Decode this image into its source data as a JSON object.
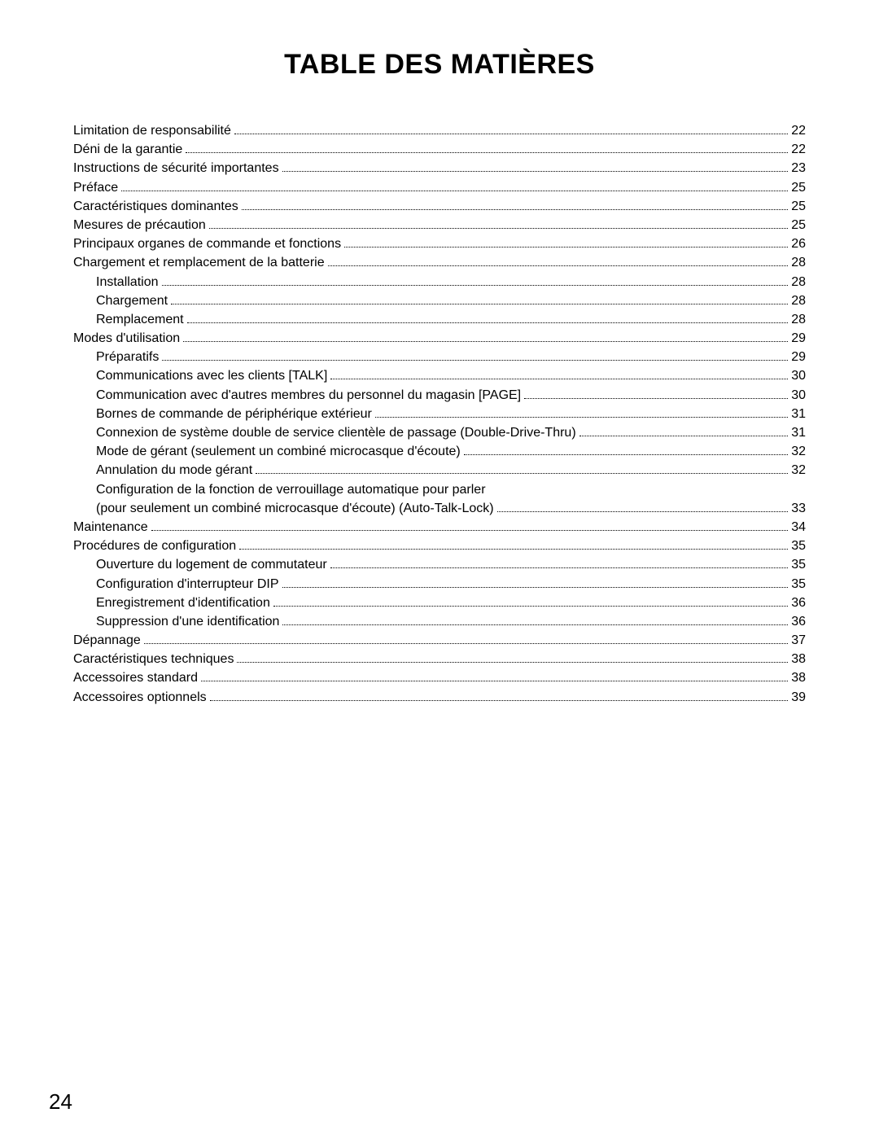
{
  "doc": {
    "title": "TABLE DES MATIÈRES",
    "page_number": "24",
    "colors": {
      "text": "#000000",
      "background": "#ffffff"
    },
    "typography": {
      "title_fontsize_pt": 26,
      "title_weight": "900",
      "body_fontsize_pt": 12,
      "pagenum_fontsize_pt": 20,
      "font_family": "Arial"
    },
    "toc": [
      {
        "label": "Limitation de responsabilité",
        "page": "22",
        "indent": 0
      },
      {
        "label": "Déni de la garantie",
        "page": "22",
        "indent": 0
      },
      {
        "label": "Instructions de sécurité importantes",
        "page": "23",
        "indent": 0
      },
      {
        "label": "Préface",
        "page": "25",
        "indent": 0
      },
      {
        "label": "Caractéristiques dominantes",
        "page": "25",
        "indent": 0
      },
      {
        "label": "Mesures de précaution",
        "page": "25",
        "indent": 0
      },
      {
        "label": "Principaux organes de commande et fonctions",
        "page": "26",
        "indent": 0
      },
      {
        "label": "Chargement et remplacement de la batterie",
        "page": "28",
        "indent": 0
      },
      {
        "label": "Installation",
        "page": "28",
        "indent": 1
      },
      {
        "label": "Chargement",
        "page": "28",
        "indent": 1
      },
      {
        "label": "Remplacement",
        "page": "28",
        "indent": 1
      },
      {
        "label": "Modes d'utilisation",
        "page": "29",
        "indent": 0
      },
      {
        "label": "Préparatifs",
        "page": "29",
        "indent": 1
      },
      {
        "label": "Communications avec les clients [TALK]",
        "page": "30",
        "indent": 1
      },
      {
        "label": "Communication avec d'autres membres du personnel du magasin [PAGE]",
        "page": "30",
        "indent": 1
      },
      {
        "label": "Bornes de commande de périphérique extérieur",
        "page": "31",
        "indent": 1
      },
      {
        "label": "Connexion de système double de service clientèle de passage (Double-Drive-Thru)",
        "page": "31",
        "indent": 1
      },
      {
        "label": "Mode de gérant (seulement un combiné microcasque d'écoute)",
        "page": "32",
        "indent": 1
      },
      {
        "label": "Annulation du mode gérant",
        "page": "32",
        "indent": 1
      },
      {
        "label": "Configuration de la fonction de verrouillage automatique pour parler",
        "page": "",
        "indent": 1,
        "noleader": true
      },
      {
        "label": "(pour seulement un combiné microcasque d'écoute) (Auto-Talk-Lock)",
        "page": "33",
        "indent": 1
      },
      {
        "label": "Maintenance",
        "page": "34",
        "indent": 0
      },
      {
        "label": "Procédures de configuration",
        "page": "35",
        "indent": 0
      },
      {
        "label": "Ouverture du logement de commutateur",
        "page": "35",
        "indent": 1
      },
      {
        "label": "Configuration d'interrupteur DIP",
        "page": "35",
        "indent": 1
      },
      {
        "label": "Enregistrement d'identification",
        "page": "36",
        "indent": 1
      },
      {
        "label": "Suppression d'une identification",
        "page": "36",
        "indent": 1
      },
      {
        "label": "Dépannage",
        "page": "37",
        "indent": 0
      },
      {
        "label": "Caractéristiques techniques",
        "page": "38",
        "indent": 0
      },
      {
        "label": "Accessoires standard",
        "page": "38",
        "indent": 0
      },
      {
        "label": "Accessoires optionnels",
        "page": "39",
        "indent": 0
      }
    ]
  }
}
